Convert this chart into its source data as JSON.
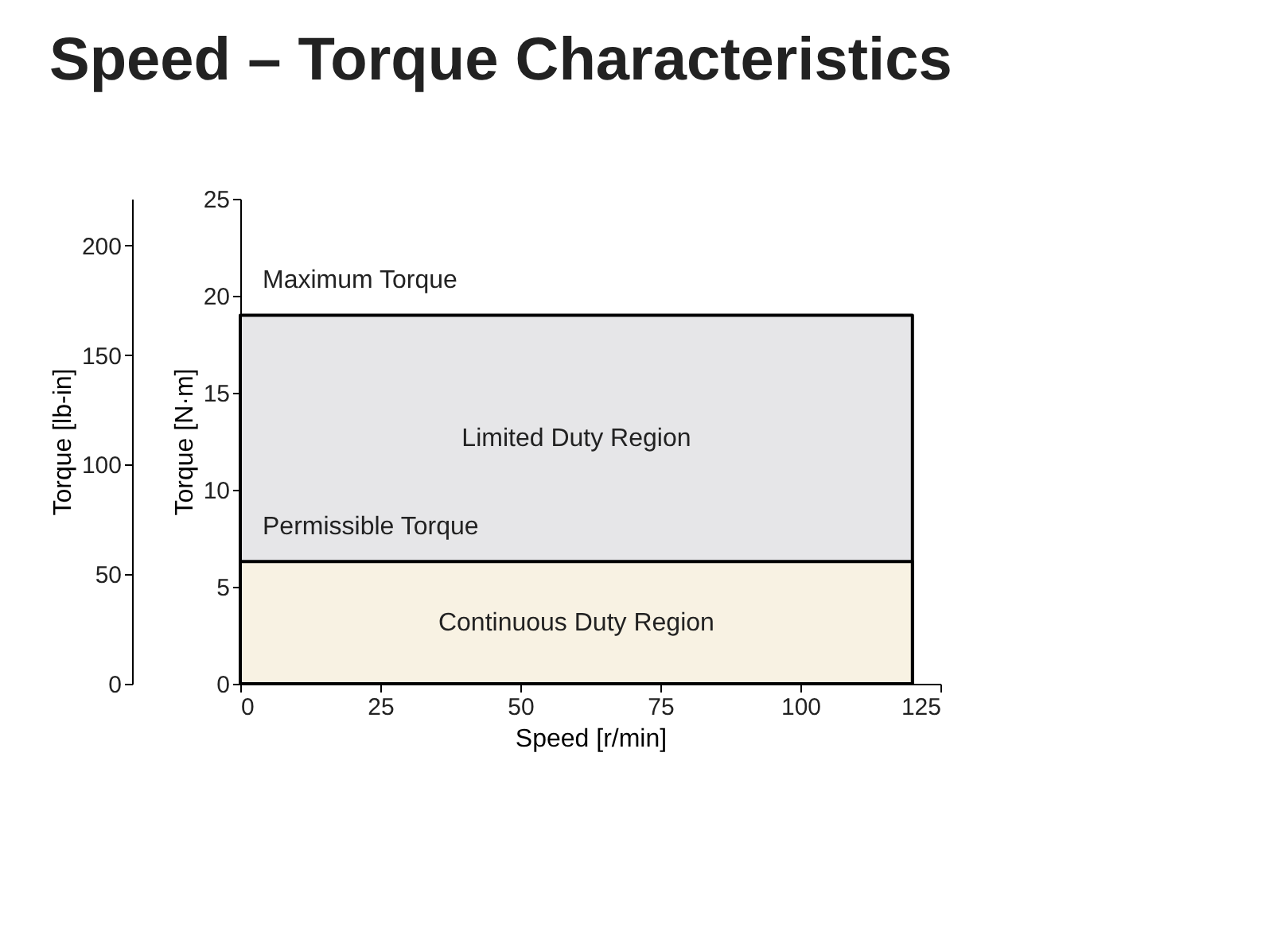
{
  "chart_data": {
    "type": "area",
    "title": "Speed – Torque Characteristics",
    "xlabel": "Speed [r/min]",
    "ylabel": "Torque [N·m]",
    "y2label": "Torque [lb-in]",
    "x": [
      0,
      120
    ],
    "series": [
      {
        "name": "Limited Duty Region",
        "color": "#e6e6e8",
        "values": [
          19,
          19
        ]
      },
      {
        "name": "Continuous Duty Region",
        "color": "#f8f2e3",
        "values": [
          6.3,
          6.3
        ]
      }
    ],
    "xlim": [
      0,
      125
    ],
    "xticks": [
      0,
      25,
      50,
      75,
      100,
      125
    ],
    "ylim": [
      0,
      25
    ],
    "yticks": [
      0,
      5,
      10,
      15,
      20,
      25
    ],
    "y2lim": [
      0,
      221.3
    ],
    "y2ticks": [
      0,
      50,
      100,
      150,
      200
    ],
    "annotations": [
      {
        "text": "Maximum Torque",
        "x": 0,
        "y": 19
      },
      {
        "text": "Permissible Torque",
        "x": 0,
        "y": 6.3
      }
    ],
    "grid": false
  }
}
